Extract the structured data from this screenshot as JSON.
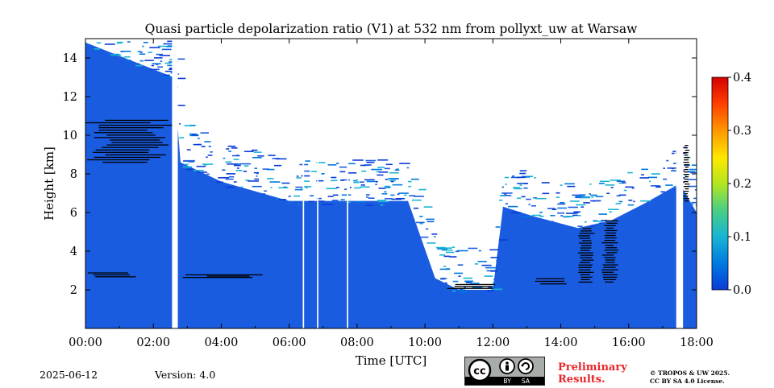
{
  "chart_data": {
    "type": "heatmap",
    "title": "Quasi particle depolarization ratio (V1) at 532 nm from pollyxt_uw at Warsaw",
    "xlabel": "Time [UTC]",
    "ylabel": "Height [km]",
    "x_range_hours": [
      0,
      18
    ],
    "x_tick_labels": [
      "00:00",
      "02:00",
      "04:00",
      "06:00",
      "08:00",
      "10:00",
      "12:00",
      "14:00",
      "16:00",
      "18:00"
    ],
    "ylim_km": [
      0,
      15
    ],
    "y_ticks": [
      2,
      4,
      6,
      8,
      10,
      12,
      14
    ],
    "colorbar": {
      "range": [
        0.0,
        0.4
      ],
      "ticks": [
        "0.0",
        "0.1",
        "0.2",
        "0.3",
        "0.4"
      ],
      "colormap": "jet",
      "colors": [
        "#0a3bd8",
        "#0078e0",
        "#19b4d4",
        "#4cd080",
        "#b4e61e",
        "#ffe800",
        "#ff9600",
        "#ff3c00",
        "#d40000"
      ]
    },
    "dominant_value": 0.02,
    "dominant_color": "#1a5ce0",
    "no_data_color": "#ffffff",
    "cloud_color": "#000000",
    "signal_top_km": [
      {
        "t": 0.0,
        "h": 14.8
      },
      {
        "t": 2.6,
        "h": 13.0
      },
      {
        "t": 2.8,
        "h": 8.6
      },
      {
        "t": 4.0,
        "h": 7.6
      },
      {
        "t": 6.0,
        "h": 6.6
      },
      {
        "t": 8.0,
        "h": 6.6
      },
      {
        "t": 9.5,
        "h": 6.6
      },
      {
        "t": 10.3,
        "h": 2.6
      },
      {
        "t": 11.0,
        "h": 2.0
      },
      {
        "t": 12.0,
        "h": 2.0
      },
      {
        "t": 12.3,
        "h": 6.3
      },
      {
        "t": 13.2,
        "h": 5.8
      },
      {
        "t": 14.5,
        "h": 5.2
      },
      {
        "t": 15.5,
        "h": 5.6
      },
      {
        "t": 16.5,
        "h": 6.5
      },
      {
        "t": 17.5,
        "h": 7.5
      },
      {
        "t": 18.0,
        "h": 6.0
      }
    ],
    "cloud_layers_km": [
      {
        "t0": 0.0,
        "t1": 2.6,
        "h0": 8.5,
        "h1": 10.8
      },
      {
        "t0": 0.0,
        "t1": 1.5,
        "h0": 2.6,
        "h1": 2.9
      },
      {
        "t0": 2.8,
        "t1": 5.5,
        "h0": 2.6,
        "h1": 2.8
      },
      {
        "t0": 10.5,
        "t1": 12.2,
        "h0": 2.0,
        "h1": 2.3
      },
      {
        "t0": 13.2,
        "t1": 14.3,
        "h0": 2.2,
        "h1": 2.6
      },
      {
        "t0": 14.5,
        "t1": 15.0,
        "h0": 2.3,
        "h1": 5.2
      },
      {
        "t0": 15.2,
        "t1": 15.7,
        "h0": 2.3,
        "h1": 5.6
      },
      {
        "t0": 17.6,
        "t1": 17.8,
        "h0": 6.5,
        "h1": 9.5
      }
    ],
    "data_gaps_hours": [
      {
        "t0": 2.55,
        "t1": 2.72
      },
      {
        "t0": 6.4,
        "t1": 6.44
      },
      {
        "t0": 6.82,
        "t1": 6.86
      },
      {
        "t0": 7.7,
        "t1": 7.74
      },
      {
        "t0": 17.4,
        "t1": 17.6
      }
    ]
  },
  "footer": {
    "date": "2025-06-12",
    "version": "Version: 4.0",
    "license_badge": {
      "icons": [
        "cc-icon",
        "by-icon",
        "sa-icon"
      ],
      "by_label": "BY",
      "sa_label": "SA"
    },
    "preliminary_line1": "Preliminary",
    "preliminary_line2": "Results.",
    "copyright_line1": "© TROPOS & UW 2025.",
    "copyright_line2": "CC BY SA 4.0 License."
  }
}
